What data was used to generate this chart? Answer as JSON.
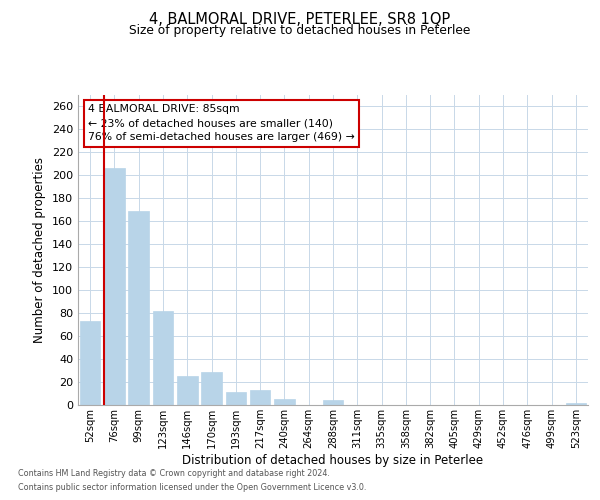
{
  "title": "4, BALMORAL DRIVE, PETERLEE, SR8 1QP",
  "subtitle": "Size of property relative to detached houses in Peterlee",
  "xlabel": "Distribution of detached houses by size in Peterlee",
  "ylabel": "Number of detached properties",
  "bar_labels": [
    "52sqm",
    "76sqm",
    "99sqm",
    "123sqm",
    "146sqm",
    "170sqm",
    "193sqm",
    "217sqm",
    "240sqm",
    "264sqm",
    "288sqm",
    "311sqm",
    "335sqm",
    "358sqm",
    "382sqm",
    "405sqm",
    "429sqm",
    "452sqm",
    "476sqm",
    "499sqm",
    "523sqm"
  ],
  "bar_values": [
    73,
    206,
    169,
    82,
    25,
    29,
    11,
    13,
    5,
    0,
    4,
    0,
    0,
    0,
    0,
    0,
    0,
    0,
    0,
    0,
    2
  ],
  "bar_color": "#b8d4e8",
  "highlight_bar_index": 1,
  "highlight_color": "#cc0000",
  "ylim": [
    0,
    270
  ],
  "yticks": [
    0,
    20,
    40,
    60,
    80,
    100,
    120,
    140,
    160,
    180,
    200,
    220,
    240,
    260
  ],
  "annotation_title": "4 BALMORAL DRIVE: 85sqm",
  "annotation_line1": "← 23% of detached houses are smaller (140)",
  "annotation_line2": "76% of semi-detached houses are larger (469) →",
  "footer_line1": "Contains HM Land Registry data © Crown copyright and database right 2024.",
  "footer_line2": "Contains public sector information licensed under the Open Government Licence v3.0.",
  "background_color": "#ffffff",
  "grid_color": "#c8d8e8"
}
